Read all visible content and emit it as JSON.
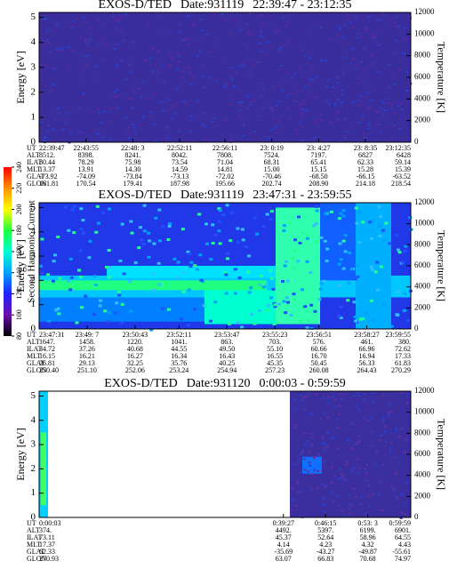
{
  "colorbar": {
    "label": "Second Harmonic Current",
    "ylim": [
      80,
      240
    ],
    "yticks": [
      80,
      100,
      120,
      140,
      160,
      180,
      200,
      220,
      240
    ],
    "colors": [
      "#000000",
      "#6a0dad",
      "#2020ff",
      "#00a0ff",
      "#00ffd0",
      "#20ff40",
      "#ffff00",
      "#ff9000",
      "#ff0000"
    ]
  },
  "chart_data": [
    {
      "type": "spectrogram",
      "title": "EXOS-D/TED",
      "date": "Date:931119",
      "time": "22:39:47 - 23:12:35",
      "ylabel": "Energy [eV]",
      "y2label": "Temperature [K]",
      "ylim": [
        0,
        5.2
      ],
      "yticks": [
        0,
        1,
        2,
        3,
        4,
        5
      ],
      "y2lim": [
        0,
        12000
      ],
      "y2ticks": [
        0,
        2000,
        4000,
        6000,
        8000,
        10000,
        12000
      ],
      "x_label": "UT",
      "x": [
        "22:39:47",
        "22:43:55",
        "22:48: 3",
        "22:52:11",
        "22:56:11",
        "23: 0:19",
        "23: 4:27",
        "23: 8:35",
        "23:12:35"
      ],
      "rows": [
        {
          "name": "ALT",
          "values": [
            "8512.",
            "8398.",
            "8241.",
            "8042.",
            "7808.",
            "7524.",
            "7197.",
            "6827",
            "6428"
          ]
        },
        {
          "name": "ILAT",
          "values": [
            "80.44",
            "78.29",
            "75.98",
            "73.54",
            "71.04",
            "68.31",
            "65.41",
            "62.33",
            "59.14"
          ]
        },
        {
          "name": "MLT",
          "values": [
            "13.37",
            "13.91",
            "14.30",
            "14.59",
            "14.81",
            "15.00",
            "15.15",
            "15.28",
            "15.39"
          ]
        },
        {
          "name": "GLAT",
          "values": [
            "-73.92",
            "-74.09",
            "-73.84",
            "-73.13",
            "-72.02",
            "-70.46",
            "-68.50",
            "-66.15",
            "-63.52"
          ]
        },
        {
          "name": "GLON",
          "values": [
            "161.81",
            "170.54",
            "179.41",
            "187.98",
            "195.66",
            "202.74",
            "208.90",
            "214.18",
            "218.54"
          ]
        }
      ]
    },
    {
      "type": "spectrogram",
      "title": "EXOS-D/TED",
      "date": "Date:931119",
      "time": "23:47:31 - 23:59:55",
      "ylabel": "Energy [eV]",
      "y2label": "Temperature [K]",
      "ylim": [
        0,
        5.2
      ],
      "yticks": [
        0,
        1,
        2,
        3,
        4,
        5
      ],
      "y2lim": [
        0,
        12000
      ],
      "y2ticks": [
        0,
        2000,
        4000,
        6000,
        8000,
        10000,
        12000
      ],
      "x_label": "UT",
      "x": [
        "23:47:31",
        "23:49: 7",
        "23:50:43",
        "23:52:11",
        "23:53:47",
        "23:55:23",
        "23:56:51",
        "23:58:27",
        "23:59:55"
      ],
      "rows": [
        {
          "name": "ALT",
          "values": [
            "1647.",
            "1458.",
            "1220.",
            "1041.",
            "863.",
            "703.",
            "576.",
            "461.",
            "380."
          ]
        },
        {
          "name": "ILAT",
          "values": [
            "34.72",
            "37.26",
            "40.68",
            "44.55",
            "49.50",
            "55.10",
            "60.66",
            "66.96",
            "72.62"
          ]
        },
        {
          "name": "MLT",
          "values": [
            "16.15",
            "16.21",
            "16.27",
            "16.34",
            "16.43",
            "16.55",
            "16.70",
            "16.94",
            "17.33"
          ]
        },
        {
          "name": "GLAT",
          "values": [
            "26.81",
            "29.13",
            "32.25",
            "35.76",
            "40.25",
            "45.35",
            "50.45",
            "56.33",
            "61.83"
          ]
        },
        {
          "name": "GLON",
          "values": [
            "250.40",
            "251.10",
            "252.06",
            "253.24",
            "254.94",
            "257.23",
            "260.08",
            "264.43",
            "270.29"
          ]
        }
      ]
    },
    {
      "type": "spectrogram",
      "title": "EXOS-D/TED",
      "date": "Date:931120",
      "time": "0:00:03 - 0:59:59",
      "ylabel": "Energy [eV]",
      "y2label": "Temperature [K]",
      "ylim": [
        0,
        5.2
      ],
      "yticks": [
        0,
        1,
        2,
        3,
        4,
        5
      ],
      "y2lim": [
        0,
        12000
      ],
      "y2ticks": [
        0,
        2000,
        4000,
        6000,
        8000,
        10000,
        12000
      ],
      "x_label": "UT",
      "x": [
        "0:00:03",
        "0:39:27",
        "0:46:15",
        "0:53: 3",
        "0:59:59"
      ],
      "rows": [
        {
          "name": "ALT",
          "values": [
            "374.",
            "4492.",
            "5397.",
            "6199.",
            "6901."
          ]
        },
        {
          "name": "ILAT",
          "values": [
            "73.11",
            "45.37",
            "52.64",
            "58.96",
            "64.55"
          ]
        },
        {
          "name": "MLT",
          "values": [
            "17.37",
            "4.14",
            "4.23",
            "4.32",
            "4.43"
          ]
        },
        {
          "name": "GLAT",
          "values": [
            "62.33",
            "-35.69",
            "-43.27",
            "-49.87",
            "-55.61"
          ]
        },
        {
          "name": "GLON",
          "values": [
            "270.93",
            "63.07",
            "66.83",
            "70.68",
            "74.97"
          ]
        }
      ]
    }
  ]
}
